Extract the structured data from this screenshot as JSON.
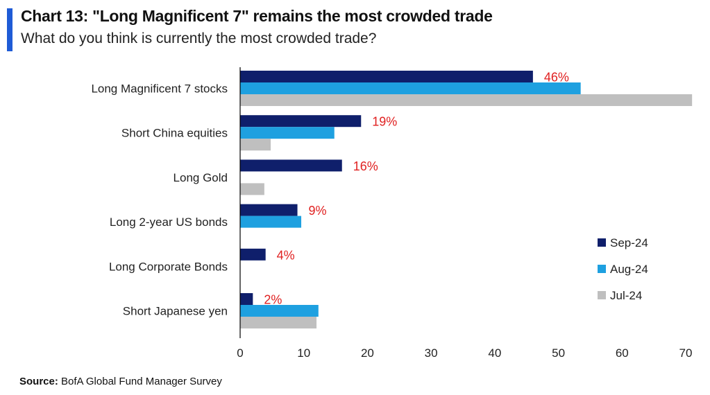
{
  "header": {
    "title": "Chart 13: \"Long Magnificent 7\" remains the most crowded trade",
    "subtitle": "What do you think is currently the most crowded trade?"
  },
  "footer": {
    "source_label": "Source:",
    "source_text": " BofA Global Fund Manager Survey"
  },
  "colors": {
    "accent": "#1f5bd6",
    "sep24": "#0f1f6b",
    "aug24": "#1ea0e0",
    "jul24": "#bfbfbf",
    "data_label": "#e02020"
  },
  "chart_data": {
    "type": "bar",
    "orientation": "horizontal",
    "title": "Chart 13: \"Long Magnificent 7\" remains the most crowded trade",
    "subtitle": "What do you think is currently the most crowded trade?",
    "xlabel": "",
    "ylabel": "",
    "xlim": [
      0,
      70
    ],
    "xticks": [
      0,
      10,
      20,
      30,
      40,
      50,
      60,
      70
    ],
    "grid": false,
    "legend_placement": "right",
    "categories": [
      "Long Magnificent 7 stocks",
      "Short China equities",
      "Long Gold",
      "Long 2-year US bonds",
      "Long Corporate Bonds",
      "Short Japanese yen"
    ],
    "series": [
      {
        "name": "Sep-24",
        "values": [
          46,
          19,
          16,
          9,
          4,
          2
        ]
      },
      {
        "name": "Aug-24",
        "values": [
          53.5,
          14.8,
          0,
          9.6,
          0,
          12.3
        ]
      },
      {
        "name": "Jul-24",
        "values": [
          71,
          4.8,
          3.8,
          0,
          0,
          12
        ]
      }
    ],
    "data_labels": {
      "series": "Sep-24",
      "labels": [
        "46%",
        "19%",
        "16%",
        "9%",
        "4%",
        "2%"
      ]
    }
  }
}
